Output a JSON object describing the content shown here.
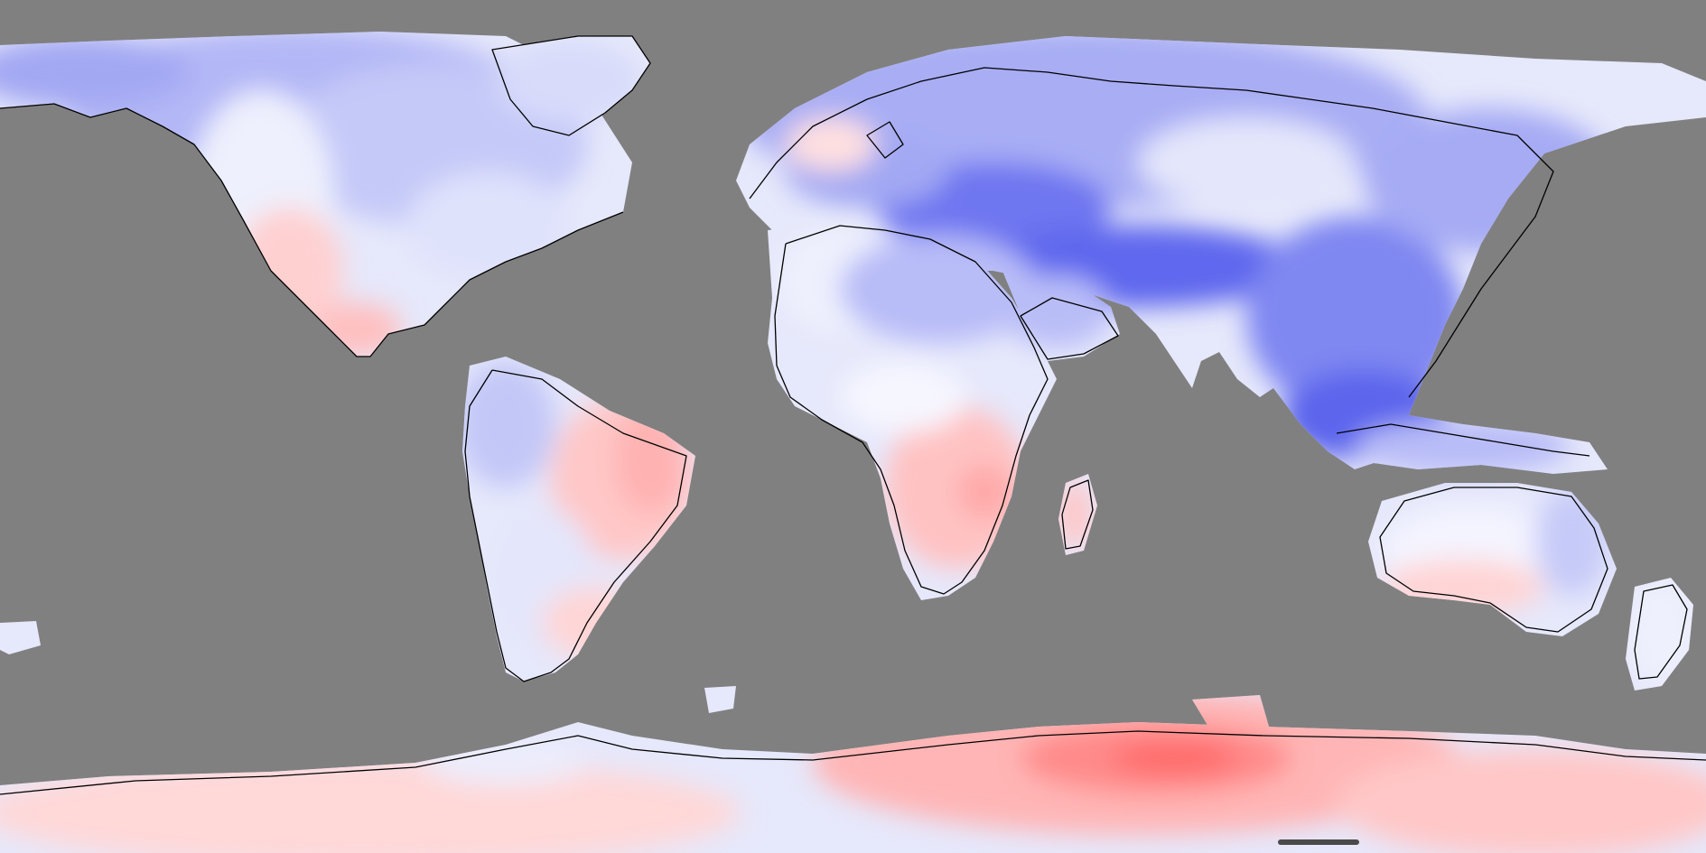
{
  "map": {
    "projection": "equirectangular",
    "background_color": "#808080",
    "ocean_masked": true,
    "coastline_color": "#000000",
    "colormap": {
      "negative": "#4b55ee",
      "neutral": "#ffffff",
      "positive": "#ff5e5e"
    },
    "regions": [
      {
        "name": "north-america",
        "tone": "cool"
      },
      {
        "name": "greenland",
        "tone": "cool"
      },
      {
        "name": "south-america",
        "tone": "mixed"
      },
      {
        "name": "eurasia",
        "tone": "cool"
      },
      {
        "name": "africa",
        "tone": "mixed"
      },
      {
        "name": "australia",
        "tone": "mixed"
      },
      {
        "name": "antarctica",
        "tone": "warm"
      }
    ]
  }
}
